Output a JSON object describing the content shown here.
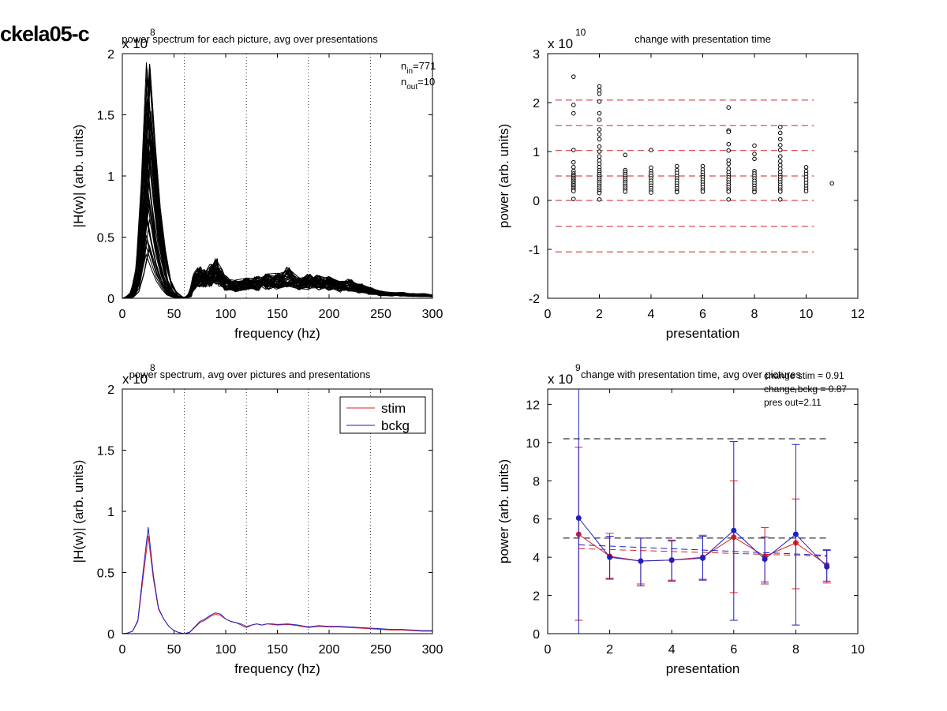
{
  "figure_title": "ckela05-c",
  "chart_data": [
    {
      "id": "tl",
      "type": "line",
      "title": "power spectrum for each picture, avg over presentations",
      "xlabel": "frequency (hz)",
      "ylabel": "|H(w)| (arb. units)",
      "xlim": [
        0,
        300
      ],
      "ylim": [
        0,
        2
      ],
      "xticks": [
        0,
        50,
        100,
        150,
        200,
        250,
        300
      ],
      "yticks": [
        0,
        0.5,
        1,
        1.5,
        2
      ],
      "ytick_labels": [
        "0",
        "0.5",
        "1",
        "1.5",
        "2"
      ],
      "scale_label": "x 10",
      "scale_exp": "8",
      "vlines": [
        60,
        120,
        180,
        240,
        300
      ],
      "annotations": [
        {
          "base": "n",
          "sub": "in",
          "text": "=771"
        },
        {
          "base": "n",
          "sub": "out",
          "text": "=10"
        }
      ],
      "series_count": 771,
      "peak_range": [
        0.25,
        1.93
      ],
      "x": [
        0,
        5,
        10,
        15,
        20,
        25,
        30,
        35,
        40,
        45,
        50,
        55,
        60,
        65,
        70,
        75,
        80,
        85,
        90,
        95,
        100,
        110,
        120,
        130,
        140,
        150,
        160,
        170,
        180,
        190,
        200,
        210,
        220,
        230,
        240,
        250,
        260,
        270,
        280,
        290,
        300
      ],
      "envelope": [
        0,
        0.01,
        0.05,
        0.25,
        0.95,
        1.93,
        1.3,
        0.75,
        0.4,
        0.15,
        0.06,
        0.02,
        0.0,
        0.03,
        0.22,
        0.26,
        0.24,
        0.28,
        0.33,
        0.25,
        0.18,
        0.15,
        0.17,
        0.18,
        0.2,
        0.21,
        0.26,
        0.17,
        0.2,
        0.19,
        0.18,
        0.14,
        0.16,
        0.12,
        0.09,
        0.06,
        0.05,
        0.05,
        0.04,
        0.04,
        0.03
      ]
    },
    {
      "id": "tr",
      "type": "scatter",
      "title": "change with presentation time",
      "xlabel": "presentation",
      "ylabel": "power (arb. units)",
      "xlim": [
        0,
        12
      ],
      "ylim": [
        -2,
        3
      ],
      "xticks": [
        0,
        2,
        4,
        6,
        8,
        10,
        12
      ],
      "yticks": [
        -2,
        -1,
        0,
        1,
        2,
        3
      ],
      "ytick_labels": [
        "-2",
        "-1",
        "0",
        "1",
        "2",
        "3"
      ],
      "scale_label": "x 10",
      "scale_exp": "10",
      "hlines": [
        -1.05,
        -0.53,
        0.0,
        0.5,
        1.02,
        1.53,
        2.05
      ],
      "hline_color": "#cc2222",
      "points": [
        {
          "x": 1,
          "y": [
            2.53,
            1.95,
            1.78,
            1.03,
            0.78,
            0.68,
            0.6,
            0.55,
            0.52,
            0.49,
            0.46,
            0.43,
            0.4,
            0.37,
            0.34,
            0.31,
            0.28,
            0.25,
            0.22,
            0.19,
            0.03
          ]
        },
        {
          "x": 2,
          "y": [
            2.33,
            2.25,
            2.18,
            2.02,
            1.78,
            1.65,
            1.45,
            1.35,
            1.25,
            1.1,
            1.0,
            0.9,
            0.82,
            0.75,
            0.68,
            0.62,
            0.58,
            0.54,
            0.5,
            0.46,
            0.42,
            0.38,
            0.34,
            0.3,
            0.26,
            0.22,
            0.18,
            0.15,
            0.02
          ]
        },
        {
          "x": 3,
          "y": [
            0.93,
            0.62,
            0.58,
            0.54,
            0.5,
            0.46,
            0.42,
            0.38,
            0.34,
            0.3,
            0.26,
            0.22,
            0.18
          ]
        },
        {
          "x": 4,
          "y": [
            1.03,
            0.67,
            0.6,
            0.55,
            0.5,
            0.45,
            0.4,
            0.35,
            0.3,
            0.25,
            0.2,
            0.16
          ]
        },
        {
          "x": 5,
          "y": [
            0.7,
            0.62,
            0.56,
            0.5,
            0.45,
            0.4,
            0.35,
            0.3,
            0.25,
            0.2,
            0.17
          ]
        },
        {
          "x": 6,
          "y": [
            0.7,
            0.63,
            0.57,
            0.52,
            0.47,
            0.42,
            0.37,
            0.32,
            0.27,
            0.22,
            0.18
          ]
        },
        {
          "x": 7,
          "y": [
            1.9,
            1.43,
            1.4,
            1.15,
            1.02,
            0.82,
            0.75,
            0.65,
            0.58,
            0.52,
            0.47,
            0.42,
            0.37,
            0.32,
            0.27,
            0.22,
            0.18,
            0.02
          ]
        },
        {
          "x": 8,
          "y": [
            1.12,
            0.95,
            0.85,
            0.6,
            0.55,
            0.5,
            0.45,
            0.4,
            0.35,
            0.3,
            0.25,
            0.2,
            0.17
          ]
        },
        {
          "x": 9,
          "y": [
            1.5,
            1.38,
            1.25,
            1.13,
            1.03,
            0.9,
            0.8,
            0.72,
            0.65,
            0.58,
            0.52,
            0.47,
            0.42,
            0.37,
            0.32,
            0.27,
            0.22,
            0.18,
            0.02
          ]
        },
        {
          "x": 10,
          "y": [
            0.68,
            0.6,
            0.54,
            0.48,
            0.42,
            0.36,
            0.3,
            0.24,
            0.19
          ]
        },
        {
          "x": 11,
          "y": [
            0.35
          ]
        }
      ]
    },
    {
      "id": "bl",
      "type": "line",
      "title": "power spectrum, avg over pictures and presentations",
      "xlabel": "frequency (hz)",
      "ylabel": "|H(w)| (arb. units)",
      "xlim": [
        0,
        300
      ],
      "ylim": [
        0,
        2
      ],
      "xticks": [
        0,
        50,
        100,
        150,
        200,
        250,
        300
      ],
      "yticks": [
        0,
        0.5,
        1,
        1.5,
        2
      ],
      "ytick_labels": [
        "0",
        "0.5",
        "1",
        "1.5",
        "2"
      ],
      "scale_label": "x 10",
      "scale_exp": "8",
      "vlines": [
        60,
        120,
        180,
        240,
        300
      ],
      "legend_position": "top-right",
      "x": [
        0,
        5,
        10,
        15,
        20,
        25,
        30,
        35,
        40,
        45,
        50,
        55,
        60,
        65,
        70,
        75,
        80,
        85,
        90,
        95,
        100,
        105,
        110,
        115,
        120,
        125,
        130,
        135,
        140,
        145,
        150,
        160,
        170,
        180,
        190,
        200,
        210,
        220,
        230,
        240,
        250,
        260,
        270,
        280,
        290,
        300
      ],
      "series": [
        {
          "name": "stim",
          "color": "#dd2222",
          "values": [
            0,
            0.005,
            0.02,
            0.1,
            0.45,
            0.8,
            0.45,
            0.2,
            0.12,
            0.06,
            0.025,
            0.008,
            0.0,
            0.01,
            0.05,
            0.09,
            0.11,
            0.14,
            0.16,
            0.15,
            0.12,
            0.1,
            0.09,
            0.08,
            0.06,
            0.07,
            0.08,
            0.07,
            0.08,
            0.075,
            0.07,
            0.075,
            0.065,
            0.05,
            0.06,
            0.055,
            0.055,
            0.05,
            0.045,
            0.04,
            0.035,
            0.03,
            0.03,
            0.025,
            0.02,
            0.02
          ]
        },
        {
          "name": "bckg",
          "color": "#1f1fc4",
          "values": [
            0,
            0.005,
            0.02,
            0.11,
            0.5,
            0.87,
            0.48,
            0.21,
            0.12,
            0.06,
            0.025,
            0.008,
            0.0,
            0.012,
            0.055,
            0.1,
            0.12,
            0.15,
            0.17,
            0.16,
            0.12,
            0.1,
            0.09,
            0.07,
            0.05,
            0.07,
            0.08,
            0.07,
            0.08,
            0.08,
            0.075,
            0.08,
            0.07,
            0.055,
            0.065,
            0.06,
            0.06,
            0.055,
            0.05,
            0.045,
            0.04,
            0.035,
            0.035,
            0.03,
            0.025,
            0.025
          ]
        }
      ]
    },
    {
      "id": "br",
      "type": "line",
      "title": "change with presentation time, avg over pictures",
      "xlabel": "presentation",
      "ylabel": "power (arb. units)",
      "xlim": [
        0,
        10
      ],
      "ylim": [
        0,
        12.8
      ],
      "xticks": [
        0,
        2,
        4,
        6,
        8,
        10
      ],
      "yticks": [
        0,
        2,
        4,
        6,
        8,
        10,
        12
      ],
      "ytick_labels": [
        "0",
        "2",
        "4",
        "6",
        "8",
        "10",
        "12"
      ],
      "scale_label": "x 10",
      "scale_exp": "9",
      "stats_lines": [
        "change stim = 0.91",
        "change bckg = 0.87",
        "pres out=2.11"
      ],
      "hlines": [
        5.0,
        10.2
      ],
      "x": [
        1,
        2,
        3,
        4,
        5,
        6,
        7,
        8,
        9
      ],
      "series": [
        {
          "name": "stim",
          "color": "#dd2222",
          "values": [
            5.2,
            4.05,
            3.8,
            3.85,
            4.0,
            5.05,
            4.05,
            4.75,
            3.6
          ],
          "err_low": [
            0.7,
            2.9,
            2.6,
            2.8,
            2.85,
            2.15,
            2.6,
            2.35,
            2.65
          ],
          "err_high": [
            9.75,
            5.25,
            5.0,
            4.9,
            5.15,
            8.0,
            5.55,
            7.05,
            4.4
          ],
          "trend": [
            4.45,
            4.05
          ]
        },
        {
          "name": "bckg",
          "color": "#1f1fc4",
          "values": [
            6.05,
            4.0,
            3.8,
            3.85,
            3.95,
            5.4,
            3.9,
            5.2,
            3.5
          ],
          "err_low": [
            0.0,
            2.85,
            2.5,
            2.75,
            2.8,
            0.7,
            2.7,
            0.45,
            2.75
          ],
          "err_high": [
            12.8,
            5.1,
            5.0,
            4.85,
            5.1,
            10.05,
            5.05,
            9.9,
            4.35
          ],
          "trend": [
            4.65,
            4.1
          ]
        }
      ]
    }
  ]
}
